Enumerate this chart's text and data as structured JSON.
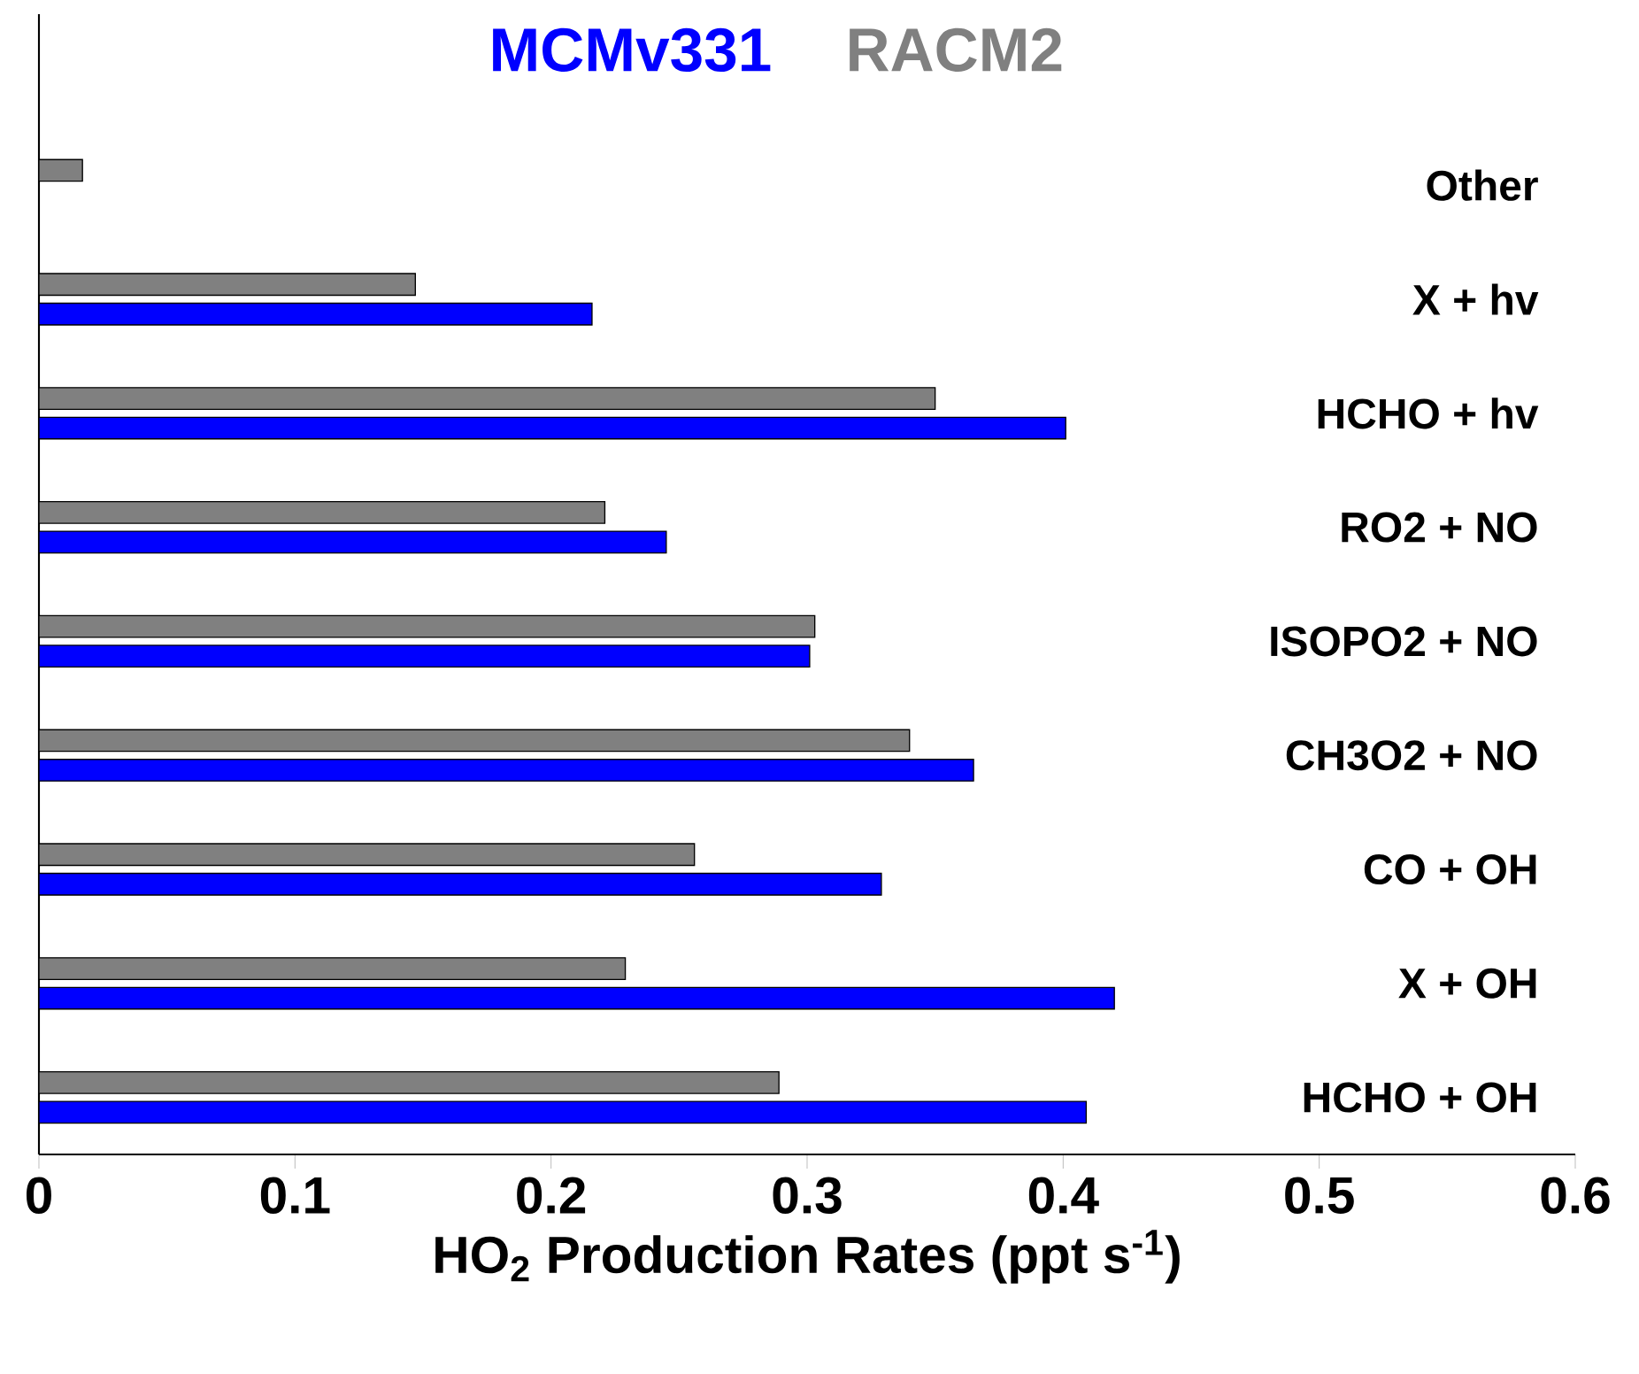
{
  "chart_data": {
    "type": "bar",
    "orientation": "horizontal",
    "xlabel": "HO$_{2}$ Production Rates (ppt s$^{-1}$)",
    "categories": [
      "Other",
      "X + hv",
      "HCHO + hv",
      "RO2 + NO",
      "ISOPO2 + NO",
      "CH3O2 + NO",
      "CO + OH",
      "X + OH",
      "HCHO + OH"
    ],
    "series": [
      {
        "name": "MCMv331",
        "color": "#0000ff",
        "values": [
          null,
          0.216,
          0.401,
          0.245,
          0.301,
          0.365,
          0.329,
          0.42,
          0.409
        ]
      },
      {
        "name": "RACM2",
        "color": "#808080",
        "values": [
          0.017,
          0.147,
          0.35,
          0.221,
          0.303,
          0.34,
          0.256,
          0.229,
          0.289
        ]
      }
    ],
    "xlim": [
      0,
      0.6
    ],
    "xticks": [
      0,
      0.1,
      0.2,
      0.3,
      0.4,
      0.5,
      0.6
    ],
    "legend": "top",
    "grid": false
  }
}
